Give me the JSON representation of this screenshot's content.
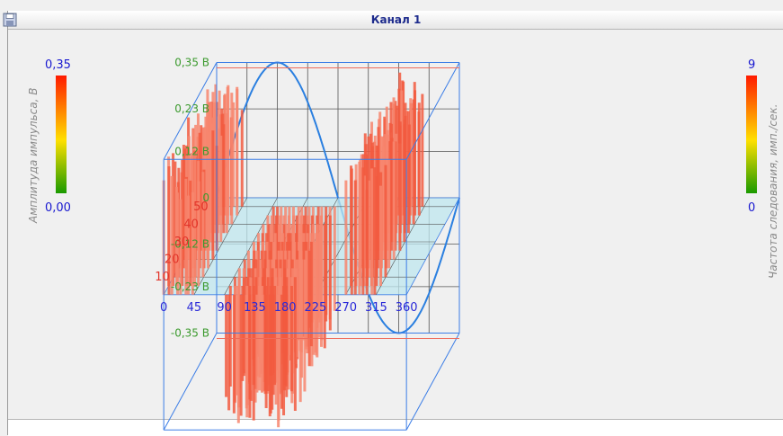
{
  "window": {
    "title": "Канал 1"
  },
  "left_legend": {
    "label": "Амплитуда импульса, В",
    "max": "0,35",
    "min": "0,00"
  },
  "right_legend": {
    "label": "Частота следования, имп./сек.",
    "max": "9",
    "min": "0"
  },
  "colors": {
    "title": "#1c2a8c",
    "sine": "#2a7fe0",
    "bars": "#f25a40",
    "grid": "#555555",
    "zero_plane": "#bfe7ef",
    "box": "#3b7de6",
    "y_ticks": "#3c9a2e",
    "x_ticks": "#2828d8",
    "z_ticks": "#e2342a"
  },
  "chart_data": {
    "type": "bar",
    "projection": "3d",
    "x_label": "",
    "y_label": "",
    "x_ticks": [
      "0",
      "45",
      "90",
      "135",
      "180",
      "225",
      "270",
      "315",
      "360"
    ],
    "y_ticks": [
      "0,35 В",
      "0,23 В",
      "0,12 В",
      "0",
      "-0,12 В",
      "-0,23 В",
      "-0,35 В"
    ],
    "z_ticks": [
      "50",
      "40",
      "30",
      "20",
      "10"
    ],
    "xlim": [
      0,
      360
    ],
    "ylim": [
      -0.35,
      0.35
    ],
    "zlim": [
      0,
      55
    ],
    "sine_amplitude": 0.35,
    "clusters": [
      {
        "x_range": [
          0,
          45
        ],
        "value": 0.35
      },
      {
        "x_range": [
          90,
          180
        ],
        "value": -0.35
      },
      {
        "x_range": [
          270,
          315
        ],
        "value": 0.35
      }
    ],
    "depth_slices": [
      0,
      5,
      10,
      15,
      20,
      25,
      30,
      35,
      40,
      45,
      50
    ]
  }
}
